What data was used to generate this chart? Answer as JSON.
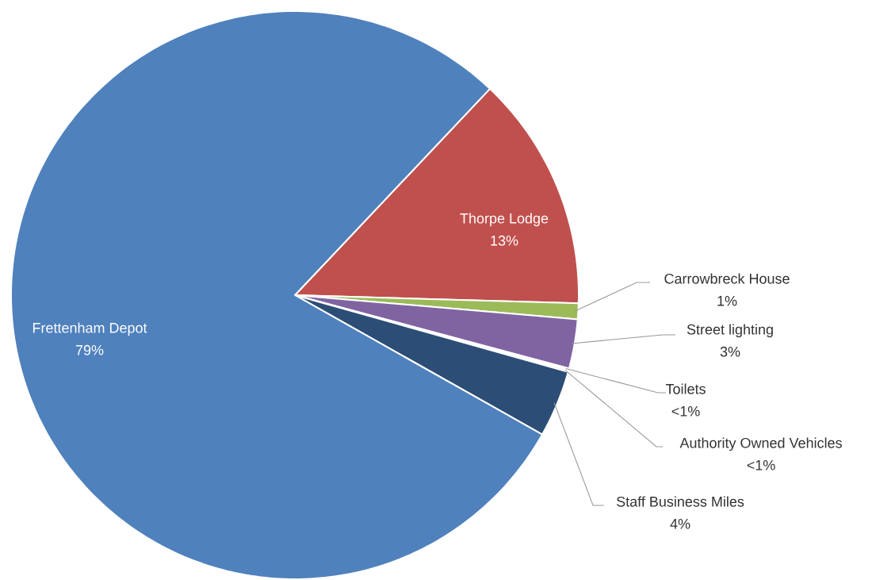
{
  "chart_data": {
    "type": "pie",
    "categories": [
      "Thorpe Lodge",
      "Carrowbreck House",
      "Street lighting",
      "Toilets",
      "Authority Owned Vehicles",
      "Staff Business Miles",
      "Frettenham Depot"
    ],
    "values": [
      13.4,
      0.9,
      2.8,
      0.1,
      0.1,
      3.8,
      78.9
    ],
    "colors": [
      "#c0504d",
      "#9bbb59",
      "#8064a2",
      "#4bacc6",
      "#f79646",
      "#2c4d75",
      "#4f81bd"
    ],
    "value_labels": [
      "13%",
      "1%",
      "3%",
      "<1%",
      "<1%",
      "4%",
      "79%"
    ]
  }
}
